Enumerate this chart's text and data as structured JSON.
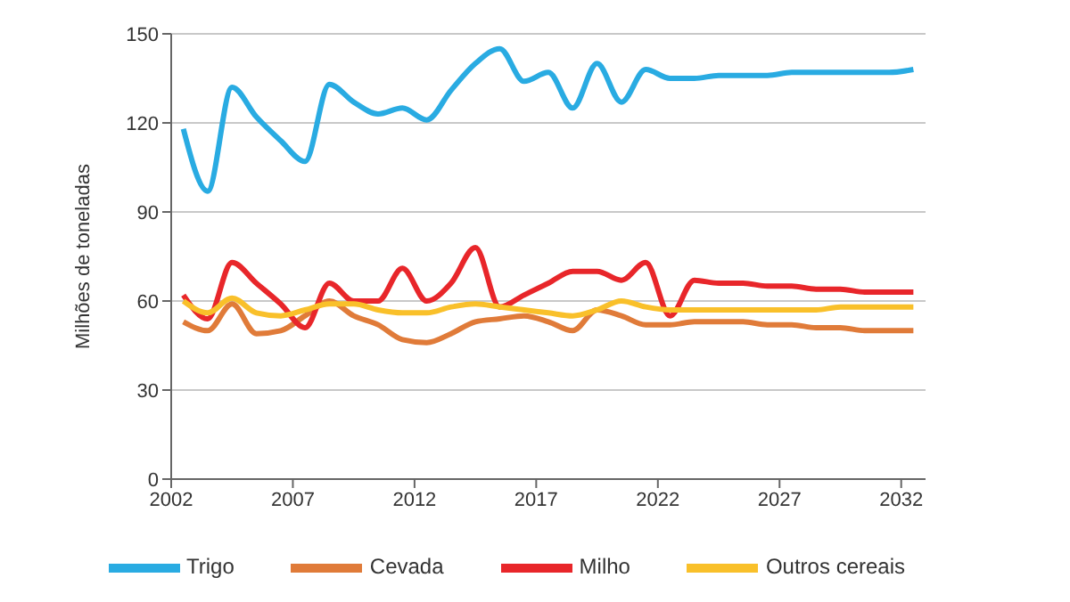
{
  "chart_data": {
    "type": "line",
    "ylabel": "Milhões de toneladas",
    "x": [
      2002.5,
      2003.5,
      2004.5,
      2005.5,
      2006.5,
      2007.5,
      2008.5,
      2009.5,
      2010.5,
      2011.5,
      2012.5,
      2013.5,
      2014.5,
      2015.5,
      2016.5,
      2017.5,
      2018.5,
      2019.5,
      2020.5,
      2021.5,
      2022.5,
      2023.5,
      2024.5,
      2025.5,
      2026.5,
      2027.5,
      2028.5,
      2029.5,
      2030.5,
      2031.5,
      2032.5
    ],
    "series": [
      {
        "name": "Trigo",
        "color": "#29abe2",
        "values": [
          118,
          97,
          132,
          122,
          114,
          107,
          133,
          127,
          123,
          125,
          121,
          131,
          140,
          145,
          134,
          137,
          125,
          140,
          127,
          138,
          135,
          135,
          136,
          136,
          136,
          137,
          137,
          137,
          137,
          137,
          138
        ]
      },
      {
        "name": "Cevada",
        "color": "#e07b39",
        "values": [
          53,
          50,
          59,
          49,
          50,
          55,
          60,
          55,
          52,
          47,
          46,
          49,
          53,
          54,
          55,
          53,
          50,
          57,
          55,
          52,
          52,
          53,
          53,
          53,
          52,
          52,
          51,
          51,
          50,
          50,
          50
        ]
      },
      {
        "name": "Milho",
        "color": "#e8262a",
        "values": [
          62,
          54,
          73,
          66,
          59,
          51,
          66,
          60,
          60,
          71,
          60,
          66,
          78,
          58,
          62,
          66,
          70,
          70,
          67,
          73,
          55,
          67,
          66,
          66,
          65,
          65,
          64,
          64,
          63,
          63,
          63
        ]
      },
      {
        "name": "Outros cereais",
        "color": "#f9c02a",
        "values": [
          60,
          56,
          61,
          56,
          55,
          57,
          59,
          59,
          57,
          56,
          56,
          58,
          59,
          58,
          57,
          56,
          55,
          57,
          60,
          58,
          57,
          57,
          57,
          57,
          57,
          57,
          57,
          58,
          58,
          58,
          58
        ]
      }
    ],
    "xlim": [
      2002,
      2033
    ],
    "xticks": [
      2002,
      2007,
      2012,
      2017,
      2022,
      2027,
      2032
    ],
    "ylim": [
      0,
      150
    ],
    "yticks": [
      0,
      30,
      60,
      90,
      120,
      150
    ],
    "grid": "y",
    "legend": "bottom",
    "marker": "none",
    "line_style": "solid"
  }
}
